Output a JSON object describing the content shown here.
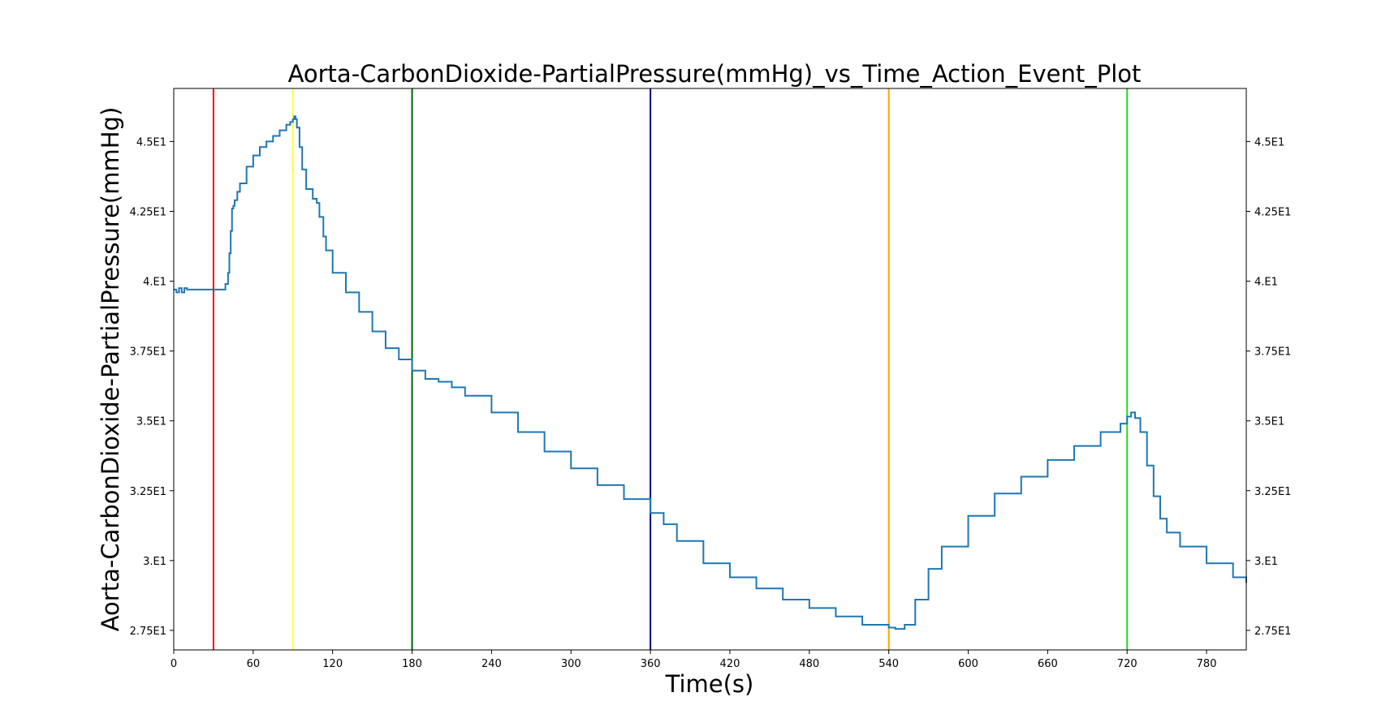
{
  "chart_data": {
    "type": "line",
    "title": "Aorta-CarbonDioxide-PartialPressure(mmHg)_vs_Time_Action_Event_Plot",
    "xlabel": "Time(s)",
    "ylabel": "Aorta-CarbonDioxide-PartialPressure(mmHg)",
    "xlim": [
      0,
      810
    ],
    "ylim": [
      26.8,
      46.9
    ],
    "x_ticks": [
      0,
      60,
      120,
      180,
      240,
      300,
      360,
      420,
      480,
      540,
      600,
      660,
      720,
      780
    ],
    "x_tick_labels": [
      "0",
      "60",
      "120",
      "180",
      "240",
      "300",
      "360",
      "420",
      "480",
      "540",
      "600",
      "660",
      "720",
      "780"
    ],
    "y_ticks": [
      27.5,
      30,
      32.5,
      35,
      37.5,
      40,
      42.5,
      45
    ],
    "y_tick_labels": [
      "2.75E1",
      "3.E1",
      "3.25E1",
      "3.5E1",
      "3.75E1",
      "4.E1",
      "4.25E1",
      "4.5E1"
    ],
    "y_ticks_mirrored_right": true,
    "grid": false,
    "line_color": "#1f77b4",
    "series": [
      {
        "x": [
          0,
          2,
          4,
          6,
          8,
          10,
          30,
          36,
          39,
          41,
          42,
          43,
          44,
          45,
          46,
          48,
          50,
          55,
          60,
          65,
          70,
          75,
          80,
          85,
          88,
          90,
          91,
          92,
          93,
          95,
          97,
          100,
          105,
          108,
          110,
          113,
          115,
          120,
          130,
          140,
          150,
          160,
          170,
          180,
          190,
          200,
          210,
          220,
          240,
          260,
          280,
          300,
          320,
          340,
          360,
          370,
          380,
          400,
          420,
          440,
          460,
          480,
          500,
          520,
          540,
          545,
          548,
          552,
          560,
          570,
          580,
          600,
          620,
          640,
          660,
          680,
          700,
          715,
          720,
          723,
          726,
          730,
          735,
          740,
          745,
          750,
          760,
          780,
          800,
          810
        ],
        "y": [
          39.7,
          39.6,
          39.75,
          39.6,
          39.75,
          39.7,
          39.7,
          39.7,
          39.9,
          40.3,
          41.0,
          41.8,
          42.6,
          42.7,
          42.9,
          43.2,
          43.5,
          44.1,
          44.5,
          44.8,
          45.0,
          45.2,
          45.4,
          45.6,
          45.7,
          45.8,
          45.9,
          45.8,
          45.5,
          44.8,
          44.0,
          43.3,
          42.95,
          42.8,
          42.3,
          41.6,
          41.1,
          40.3,
          39.6,
          38.9,
          38.2,
          37.6,
          37.2,
          36.8,
          36.5,
          36.4,
          36.2,
          35.9,
          35.3,
          34.6,
          33.9,
          33.3,
          32.7,
          32.2,
          31.7,
          31.3,
          30.7,
          29.9,
          29.4,
          29.0,
          28.6,
          28.3,
          28.0,
          27.7,
          27.6,
          27.55,
          27.55,
          27.7,
          28.6,
          29.7,
          30.5,
          31.6,
          32.4,
          33.0,
          33.6,
          34.1,
          34.6,
          34.9,
          35.15,
          35.3,
          35.1,
          34.6,
          33.4,
          32.3,
          31.5,
          31.0,
          30.5,
          29.9,
          29.4,
          29.2
        ]
      }
    ],
    "event_lines": [
      {
        "x": 30,
        "color": "#ff0000"
      },
      {
        "x": 90,
        "color": "#ffff33"
      },
      {
        "x": 180,
        "color": "#006400"
      },
      {
        "x": 360,
        "color": "#00007f"
      },
      {
        "x": 540,
        "color": "#ffa500"
      },
      {
        "x": 720,
        "color": "#22dd22"
      }
    ]
  }
}
